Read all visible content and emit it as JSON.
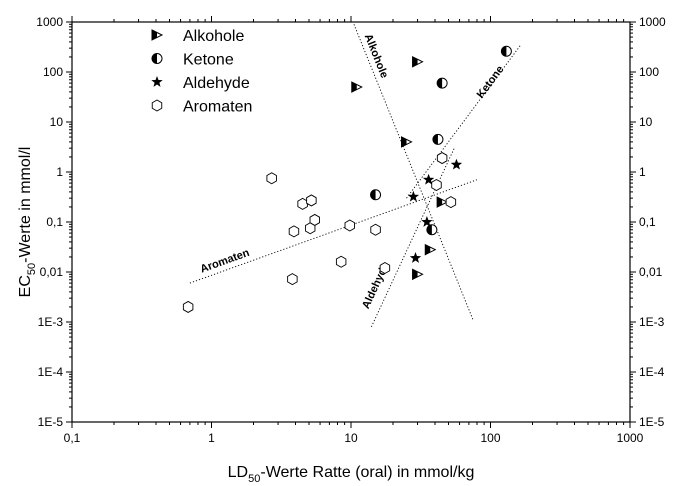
{
  "chart_data": {
    "type": "scatter",
    "xscale": "log",
    "yscale": "log",
    "xlim": [
      0.1,
      1000
    ],
    "ylim": [
      1e-05,
      1000
    ],
    "x_ticks": [
      "0,1",
      "1",
      "10",
      "100",
      "1000"
    ],
    "y_ticks": [
      "1E-5",
      "1E-4",
      "1E-3",
      "0,01",
      "0,1",
      "1",
      "10",
      "100",
      "1000"
    ],
    "xlabel": {
      "pre": "LD",
      "sub": "50",
      "post": "-Werte Ratte (oral) in mmol/kg"
    },
    "ylabel": {
      "pre": "EC",
      "sub": "50",
      "post": "-Werte in mmol/l"
    },
    "legend_position": "top-left",
    "series": [
      {
        "name": "Alkohole",
        "marker": "half-triangle",
        "points": [
          [
            11,
            50
          ],
          [
            30,
            160
          ],
          [
            25,
            4
          ],
          [
            45,
            0.25
          ],
          [
            37,
            0.028
          ],
          [
            30,
            0.009
          ]
        ],
        "fit": {
          "label": "Alkohole",
          "x1": 10.5,
          "y1": 900,
          "x2": 75,
          "y2": 0.0011
        }
      },
      {
        "name": "Ketone",
        "marker": "half-circle",
        "points": [
          [
            130,
            260
          ],
          [
            45,
            60
          ],
          [
            42,
            4.5
          ],
          [
            15,
            0.35
          ],
          [
            38,
            0.07
          ]
        ],
        "fit": {
          "label": "Ketone",
          "x1": 25,
          "y1": 0.3,
          "x2": 165,
          "y2": 350
        }
      },
      {
        "name": "Aldehyde",
        "marker": "star",
        "points": [
          [
            57,
            1.4
          ],
          [
            36,
            0.7
          ],
          [
            28,
            0.32
          ],
          [
            35,
            0.1
          ],
          [
            29,
            0.019
          ]
        ],
        "fit": {
          "label": "Aldehyde",
          "x1": 14,
          "y1": 0.0008,
          "x2": 55,
          "y2": 3
        }
      },
      {
        "name": "Aromaten",
        "marker": "hexagon",
        "points": [
          [
            0.68,
            0.002
          ],
          [
            2.7,
            0.75
          ],
          [
            3.8,
            0.0072
          ],
          [
            3.9,
            0.065
          ],
          [
            4.5,
            0.23
          ],
          [
            5.2,
            0.27
          ],
          [
            5.1,
            0.075
          ],
          [
            5.5,
            0.11
          ],
          [
            8.5,
            0.016
          ],
          [
            9.8,
            0.085
          ],
          [
            15,
            0.07
          ],
          [
            17.5,
            0.012
          ],
          [
            41,
            0.55
          ],
          [
            45,
            1.9
          ],
          [
            52,
            0.25
          ]
        ],
        "fit": {
          "label": "Aromaten",
          "x1": 0.7,
          "y1": 0.006,
          "x2": 80,
          "y2": 0.7
        }
      }
    ]
  }
}
